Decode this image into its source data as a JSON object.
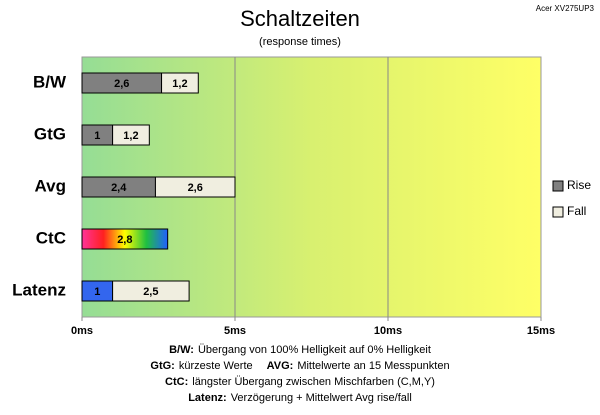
{
  "chart_data": {
    "type": "stacked-barh",
    "title": "Schaltzeiten",
    "subtitle": "(response times)",
    "corner_label": "Acer XV275UP3",
    "categories": [
      "B/W",
      "GtG",
      "Avg",
      "CtC",
      "Latenz"
    ],
    "series": [
      {
        "name": "Rise",
        "color": "#808080",
        "label_color": "#ffffff",
        "values": [
          2.6,
          1,
          2.4,
          null,
          1
        ],
        "value_labels": [
          "2,6",
          "1",
          "2,4",
          null,
          "1"
        ]
      },
      {
        "name": "Fall",
        "color": "#f0eee0",
        "label_color": "#000000",
        "values": [
          1.2,
          1.2,
          2.6,
          null,
          2.5
        ],
        "value_labels": [
          "1,2",
          "1,2",
          "2,6",
          null,
          "2,5"
        ]
      }
    ],
    "gradient_series": {
      "values": [
        null,
        null,
        null,
        2.8,
        null
      ],
      "value_labels": [
        null,
        null,
        null,
        "2,8",
        null
      ],
      "colors": [
        "#ff3399",
        "#ff2020",
        "#ffff00",
        "#20c040",
        "#2060ff"
      ]
    },
    "latency_color": "#3366ee",
    "xlim": [
      0,
      15
    ],
    "xticks": [
      {
        "value": 0,
        "label": "0ms"
      },
      {
        "value": 5,
        "label": "5ms"
      },
      {
        "value": 10,
        "label": "10ms"
      },
      {
        "value": 15,
        "label": "15ms"
      }
    ],
    "grid": true,
    "legend": "right",
    "background_colors": [
      "#95dd95",
      "#d8f070",
      "#ffff66"
    ],
    "notes": [
      [
        {
          "term": "B/W:",
          "text": "Übergang von 100% Helligkeit auf 0% Helligkeit"
        }
      ],
      [
        {
          "term": "GtG:",
          "text": "kürzeste Werte"
        },
        {
          "term": "AVG:",
          "text": "Mittelwerte an 15 Messpunkten"
        }
      ],
      [
        {
          "term": "CtC:",
          "text": "längster Übergang zwischen Mischfarben (C,M,Y)"
        }
      ],
      [
        {
          "term": "Latenz:",
          "text": "Verzögerung + Mittelwert Avg rise/fall"
        }
      ]
    ]
  }
}
